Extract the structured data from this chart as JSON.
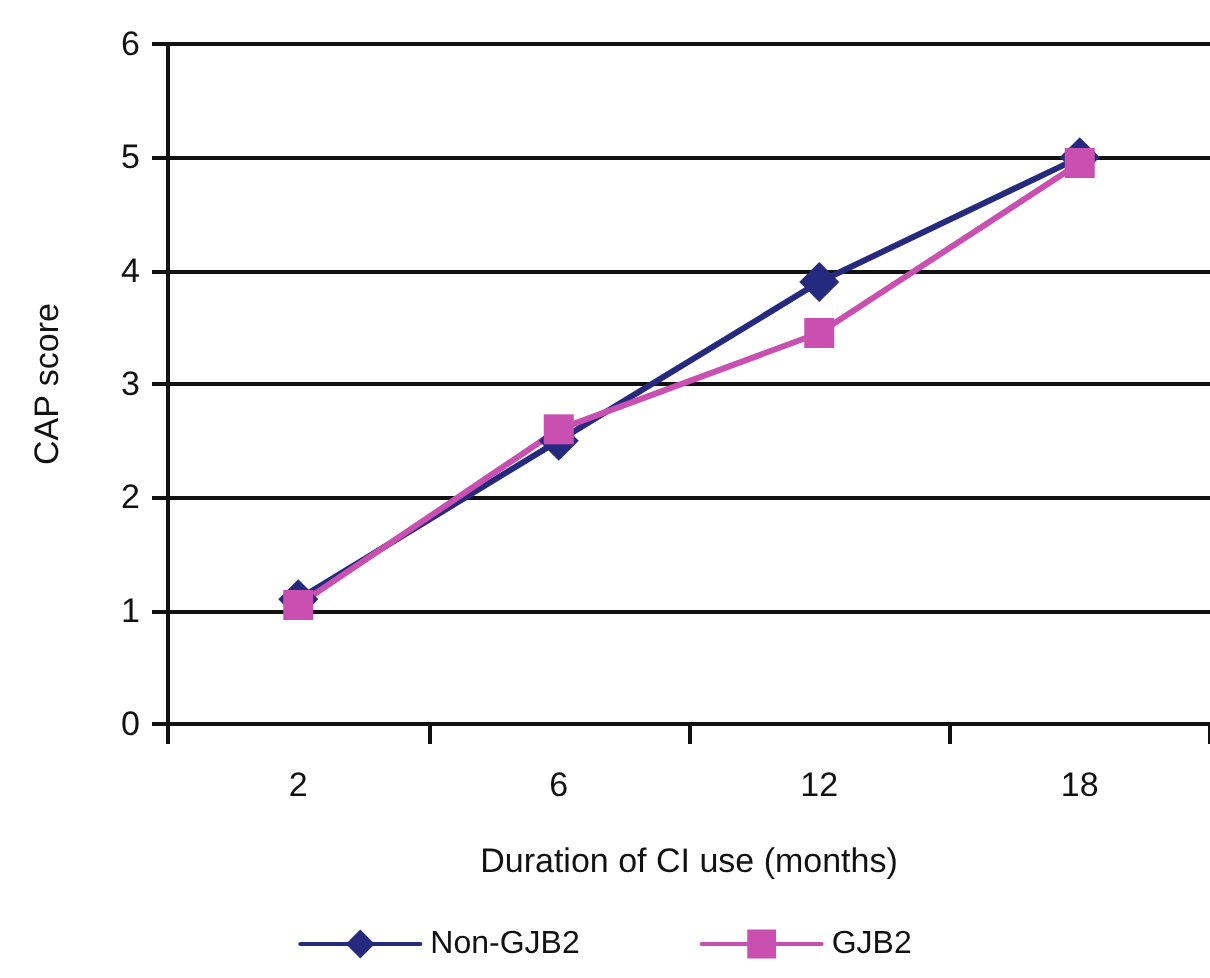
{
  "chart_data": {
    "type": "line",
    "xlabel": "Duration of CI use (months)",
    "ylabel": "CAP score",
    "categories": [
      "2",
      "6",
      "12",
      "18"
    ],
    "series": [
      {
        "name": "Non-GJB2",
        "color": "#262a7f",
        "marker": "diamond",
        "values": [
          1.1,
          2.5,
          3.9,
          5.0
        ]
      },
      {
        "name": "GJB2",
        "color": "#c94fb0",
        "marker": "square",
        "values": [
          1.05,
          2.6,
          3.45,
          4.95
        ]
      }
    ],
    "ylim": [
      0,
      6
    ],
    "yticks": [
      0,
      1,
      2,
      3,
      4,
      5,
      6
    ],
    "grid": "y",
    "legend": "bottom",
    "line_style": "solid"
  }
}
